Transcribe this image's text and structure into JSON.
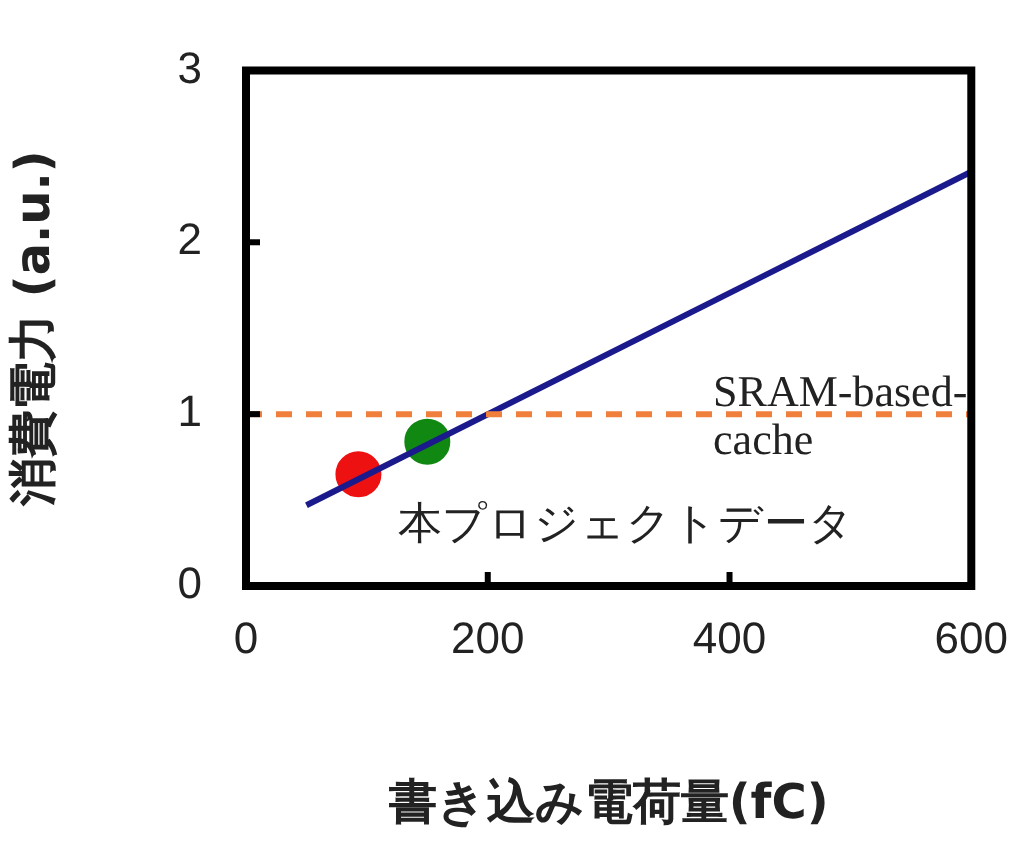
{
  "chart_data": {
    "type": "line",
    "xlabel": "書き込み電荷量(fC)",
    "ylabel": "消費電力 (a.u.)",
    "xlim": [
      0,
      600
    ],
    "xticks": [
      0,
      200,
      400,
      600
    ],
    "ylim": [
      0,
      3
    ],
    "yticks": [
      0,
      1,
      2,
      3
    ],
    "grid": false,
    "legend": false,
    "marker": "none",
    "series": [
      {
        "color": "#1a1a8c",
        "x": [
          50,
          600
        ],
        "values": [
          0.47,
          2.41
        ]
      },
      {
        "type": "scatter",
        "name": "本プロジェクトデータ",
        "marker": "circle",
        "colors": [
          "#ee1111",
          "#118811"
        ],
        "x": [
          93,
          150
        ],
        "values": [
          0.65,
          0.84
        ]
      }
    ],
    "ref_lines": [
      {
        "axis": "y",
        "value": 1,
        "label": "SRAM-based-cache",
        "color": "#f07f3c",
        "line_style": "dashed"
      }
    ]
  }
}
